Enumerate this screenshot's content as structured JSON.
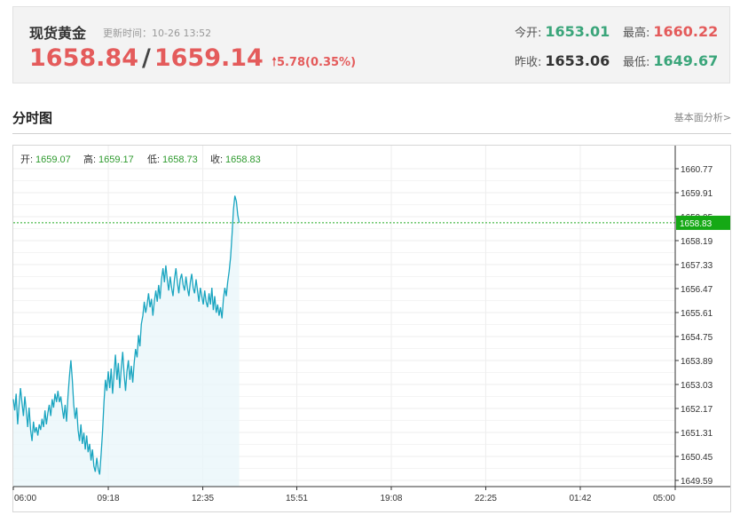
{
  "quote": {
    "name": "现货黄金",
    "update_time": "更新时间：10-26 13:52",
    "bid": "1658.84",
    "separator": "/",
    "ask": "1659.14",
    "change": "5.78(0.35%)",
    "open_label": "今开:",
    "open": "1653.01",
    "high_label": "最高:",
    "high": "1660.22",
    "prev_close_label": "昨收:",
    "prev_close": "1653.06",
    "low_label": "最低:",
    "low": "1649.67",
    "colors": {
      "up": "#e45b5b",
      "down": "#3aa57a"
    }
  },
  "section": {
    "title": "分时图",
    "link": "基本面分析>"
  },
  "chart_data": {
    "type": "area",
    "ohlc": {
      "open_label": "开:",
      "open": "1659.07",
      "high_label": "高:",
      "high": "1659.17",
      "low_label": "低:",
      "low": "1658.73",
      "close_label": "收:",
      "close": "1658.83"
    },
    "current_price": "1658.83",
    "y_ticks": [
      "1660.77",
      "1659.91",
      "1659.05",
      "1658.19",
      "1657.33",
      "1656.47",
      "1655.61",
      "1654.75",
      "1653.89",
      "1653.03",
      "1652.17",
      "1651.31",
      "1650.45",
      "1649.59"
    ],
    "ylim": [
      1649.59,
      1660.77
    ],
    "x_ticks": [
      "06:00",
      "09:18",
      "12:35",
      "15:51",
      "19:08",
      "22:25",
      "01:42",
      "05:00"
    ],
    "x_tick_minutes": [
      0,
      198,
      395,
      591,
      788,
      985,
      1182,
      1380
    ],
    "series": [
      {
        "color": "#1aa5c0",
        "points": [
          [
            0,
            1652.5
          ],
          [
            3,
            1652.1
          ],
          [
            6,
            1652.7
          ],
          [
            9,
            1651.6
          ],
          [
            12,
            1652.3
          ],
          [
            15,
            1652.9
          ],
          [
            18,
            1652.4
          ],
          [
            21,
            1651.9
          ],
          [
            24,
            1652.6
          ],
          [
            27,
            1652.1
          ],
          [
            30,
            1651.5
          ],
          [
            33,
            1652.2
          ],
          [
            36,
            1651.4
          ],
          [
            39,
            1651.0
          ],
          [
            42,
            1651.7
          ],
          [
            45,
            1651.3
          ],
          [
            48,
            1651.5
          ],
          [
            51,
            1651.2
          ],
          [
            54,
            1651.6
          ],
          [
            57,
            1651.4
          ],
          [
            60,
            1651.8
          ],
          [
            63,
            1651.5
          ],
          [
            66,
            1652.1
          ],
          [
            69,
            1651.6
          ],
          [
            72,
            1652.0
          ],
          [
            75,
            1652.3
          ],
          [
            78,
            1651.9
          ],
          [
            81,
            1652.5
          ],
          [
            84,
            1652.2
          ],
          [
            87,
            1652.7
          ],
          [
            90,
            1652.4
          ],
          [
            93,
            1652.8
          ],
          [
            96,
            1652.4
          ],
          [
            99,
            1652.6
          ],
          [
            102,
            1652.2
          ],
          [
            105,
            1651.8
          ],
          [
            108,
            1652.3
          ],
          [
            111,
            1651.7
          ],
          [
            114,
            1652.6
          ],
          [
            117,
            1653.3
          ],
          [
            120,
            1653.9
          ],
          [
            123,
            1653.2
          ],
          [
            126,
            1652.3
          ],
          [
            129,
            1651.8
          ],
          [
            132,
            1652.2
          ],
          [
            135,
            1651.4
          ],
          [
            138,
            1651.0
          ],
          [
            141,
            1651.6
          ],
          [
            144,
            1650.9
          ],
          [
            147,
            1651.3
          ],
          [
            150,
            1650.7
          ],
          [
            153,
            1651.2
          ],
          [
            156,
            1650.6
          ],
          [
            159,
            1650.9
          ],
          [
            162,
            1650.3
          ],
          [
            165,
            1650.7
          ],
          [
            168,
            1650.1
          ],
          [
            171,
            1649.9
          ],
          [
            174,
            1650.4
          ],
          [
            177,
            1650.0
          ],
          [
            180,
            1649.8
          ],
          [
            183,
            1650.5
          ],
          [
            186,
            1651.3
          ],
          [
            189,
            1652.4
          ],
          [
            192,
            1653.2
          ],
          [
            195,
            1652.8
          ],
          [
            198,
            1653.5
          ],
          [
            201,
            1652.9
          ],
          [
            204,
            1653.6
          ],
          [
            207,
            1652.7
          ],
          [
            210,
            1653.4
          ],
          [
            213,
            1654.1
          ],
          [
            216,
            1653.2
          ],
          [
            219,
            1653.8
          ],
          [
            222,
            1652.9
          ],
          [
            225,
            1653.6
          ],
          [
            228,
            1654.2
          ],
          [
            231,
            1653.4
          ],
          [
            234,
            1652.8
          ],
          [
            237,
            1653.5
          ],
          [
            240,
            1653.9
          ],
          [
            243,
            1653.2
          ],
          [
            246,
            1653.7
          ],
          [
            249,
            1653.1
          ],
          [
            252,
            1653.8
          ],
          [
            255,
            1654.3
          ],
          [
            258,
            1654.0
          ],
          [
            261,
            1654.8
          ],
          [
            264,
            1654.4
          ],
          [
            267,
            1655.2
          ],
          [
            270,
            1655.5
          ],
          [
            273,
            1656.0
          ],
          [
            276,
            1655.6
          ],
          [
            279,
            1655.9
          ],
          [
            282,
            1656.3
          ],
          [
            285,
            1655.8
          ],
          [
            288,
            1656.1
          ],
          [
            291,
            1655.5
          ],
          [
            294,
            1656.0
          ],
          [
            297,
            1656.4
          ],
          [
            300,
            1656.0
          ],
          [
            303,
            1656.6
          ],
          [
            306,
            1656.1
          ],
          [
            309,
            1656.8
          ],
          [
            312,
            1657.2
          ],
          [
            315,
            1656.7
          ],
          [
            318,
            1657.3
          ],
          [
            321,
            1656.8
          ],
          [
            324,
            1656.4
          ],
          [
            327,
            1656.9
          ],
          [
            330,
            1656.5
          ],
          [
            333,
            1656.2
          ],
          [
            336,
            1656.8
          ],
          [
            339,
            1657.2
          ],
          [
            342,
            1656.7
          ],
          [
            345,
            1656.3
          ],
          [
            348,
            1656.8
          ],
          [
            351,
            1657.0
          ],
          [
            354,
            1656.6
          ],
          [
            357,
            1656.4
          ],
          [
            360,
            1656.9
          ],
          [
            363,
            1656.5
          ],
          [
            366,
            1656.2
          ],
          [
            369,
            1656.7
          ],
          [
            372,
            1657.0
          ],
          [
            375,
            1656.5
          ],
          [
            378,
            1656.3
          ],
          [
            381,
            1656.8
          ],
          [
            384,
            1656.4
          ],
          [
            387,
            1656.0
          ],
          [
            390,
            1656.5
          ],
          [
            393,
            1656.2
          ],
          [
            396,
            1655.9
          ],
          [
            399,
            1656.4
          ],
          [
            402,
            1656.0
          ],
          [
            405,
            1655.8
          ],
          [
            408,
            1656.3
          ],
          [
            411,
            1655.9
          ],
          [
            414,
            1656.5
          ],
          [
            417,
            1655.7
          ],
          [
            420,
            1656.2
          ],
          [
            423,
            1655.6
          ],
          [
            426,
            1655.9
          ],
          [
            429,
            1655.5
          ],
          [
            432,
            1655.8
          ],
          [
            435,
            1655.4
          ],
          [
            438,
            1656.1
          ],
          [
            441,
            1656.5
          ],
          [
            444,
            1656.2
          ],
          [
            447,
            1656.7
          ],
          [
            450,
            1657.1
          ],
          [
            453,
            1657.6
          ],
          [
            456,
            1658.4
          ],
          [
            459,
            1659.3
          ],
          [
            462,
            1659.8
          ],
          [
            465,
            1659.6
          ],
          [
            468,
            1659.1
          ],
          [
            471,
            1658.83
          ]
        ]
      }
    ]
  }
}
